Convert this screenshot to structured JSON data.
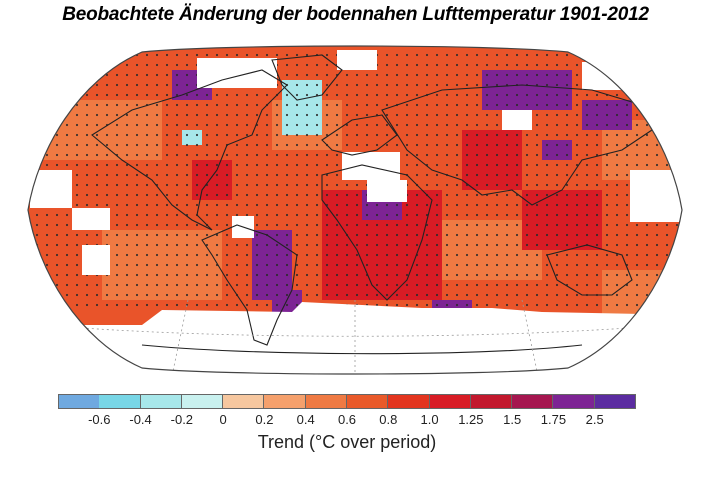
{
  "title": "Beobachtete  Änderung der bodennahen Lufttemperatur 1901-2012",
  "legend": {
    "title": "Trend (°C over period)",
    "colors": [
      "#6fa9e0",
      "#78d6e6",
      "#a7e7ea",
      "#c9f1ef",
      "#f6c79f",
      "#f5a06c",
      "#ef7a43",
      "#e95a2a",
      "#e3351f",
      "#d81c25",
      "#c2182d",
      "#a5164f",
      "#7d2494",
      "#5b2ca0"
    ],
    "tick_labels": [
      "-0.6",
      "-0.4",
      "-0.2",
      "0",
      "0.2",
      "0.4",
      "0.6",
      "0.8",
      "1.0",
      "1.25",
      "1.5",
      "1.75",
      "2.5"
    ]
  },
  "map": {
    "projection": "robinson",
    "colors": {
      "ocean_missing": "#ffffff",
      "land_outline": "#222222",
      "base_warm": "#e9542a",
      "moderate": "#ef7a43",
      "strong": "#d81c25",
      "very_strong": "#7d2494",
      "cooling": "#a7e7ea",
      "stipple": "#2a2a2a"
    }
  }
}
